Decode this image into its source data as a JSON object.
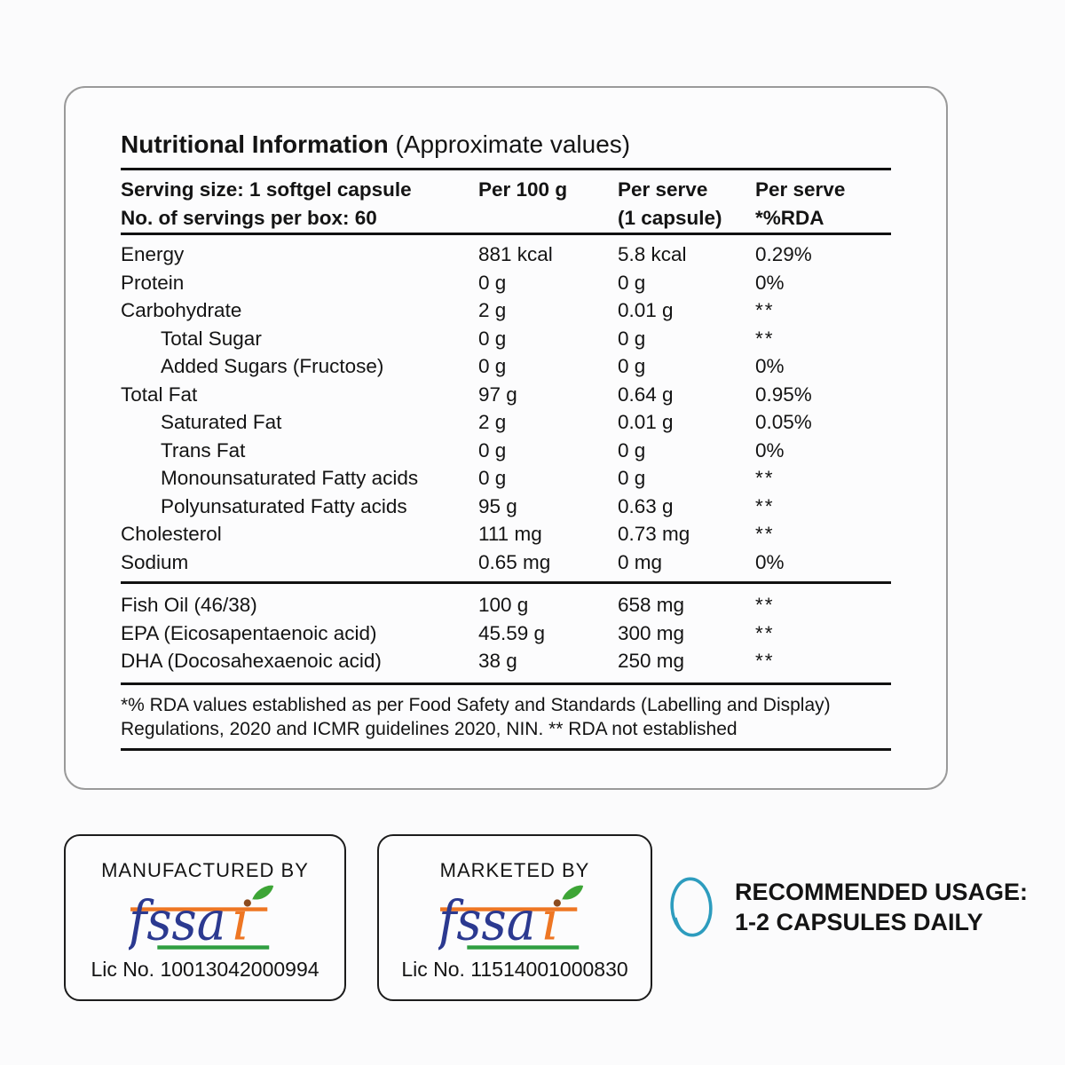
{
  "panel": {
    "title": "Nutritional Information",
    "subtitle": "(Approximate values)",
    "header": {
      "serving_line1": "Serving size: 1 softgel capsule",
      "serving_line2": "No. of servings per box: 60",
      "col_per_100g": "Per 100 g",
      "col_per_serve_line1": "Per serve",
      "col_per_serve_line2": "(1 capsule)",
      "col_rda_line1": "Per serve",
      "col_rda_line2": "*%RDA"
    },
    "rows": [
      {
        "label": "Energy",
        "indent": false,
        "per_100g": "881 kcal",
        "per_serve": "5.8 kcal",
        "rda": "0.29%"
      },
      {
        "label": "Protein",
        "indent": false,
        "per_100g": "0 g",
        "per_serve": "0 g",
        "rda": "0%"
      },
      {
        "label": "Carbohydrate",
        "indent": false,
        "per_100g": "2 g",
        "per_serve": "0.01 g",
        "rda": "**"
      },
      {
        "label": "Total Sugar",
        "indent": true,
        "per_100g": "0 g",
        "per_serve": "0 g",
        "rda": "**"
      },
      {
        "label": "Added Sugars (Fructose)",
        "indent": true,
        "per_100g": "0 g",
        "per_serve": "0 g",
        "rda": "0%"
      },
      {
        "label": "Total Fat",
        "indent": false,
        "per_100g": "97 g",
        "per_serve": "0.64 g",
        "rda": "0.95%"
      },
      {
        "label": "Saturated Fat",
        "indent": true,
        "per_100g": "2 g",
        "per_serve": "0.01 g",
        "rda": "0.05%"
      },
      {
        "label": "Trans Fat",
        "indent": true,
        "per_100g": "0 g",
        "per_serve": "0 g",
        "rda": "0%"
      },
      {
        "label": "Monounsaturated Fatty acids",
        "indent": true,
        "per_100g": "0 g",
        "per_serve": "0 g",
        "rda": "**"
      },
      {
        "label": "Polyunsaturated Fatty acids",
        "indent": true,
        "per_100g": "95 g",
        "per_serve": "0.63 g",
        "rda": "**"
      },
      {
        "label": "Cholesterol",
        "indent": false,
        "per_100g": "111 mg",
        "per_serve": "0.73 mg",
        "rda": "**"
      },
      {
        "label": "Sodium",
        "indent": false,
        "per_100g": "0.65 mg",
        "per_serve": "0 mg",
        "rda": "0%"
      }
    ],
    "composition_rows": [
      {
        "label": "Fish Oil (46/38)",
        "indent": false,
        "per_100g": "100 g",
        "per_serve": "658 mg",
        "rda": "**"
      },
      {
        "label": "EPA (Eicosapentaenoic acid)",
        "indent": false,
        "per_100g": "45.59 g",
        "per_serve": "300 mg",
        "rda": "**"
      },
      {
        "label": "DHA (Docosahexaenoic acid)",
        "indent": false,
        "per_100g": "38 g",
        "per_serve": "250 mg",
        "rda": "**"
      }
    ],
    "footnote_line1": "*% RDA values established as per Food Safety and Standards (Labelling and Display)",
    "footnote_line2": "Regulations, 2020 and ICMR guidelines 2020, NIN. ** RDA not established"
  },
  "manufactured": {
    "heading": "MANUFACTURED BY",
    "license": "Lic No. 10013042000994"
  },
  "marketed": {
    "heading": "MARKETED BY",
    "license": "Lic No. 11514001000830"
  },
  "fssai_logo": {
    "name": "fssai",
    "main_display": "fssa",
    "i_display": "ı"
  },
  "usage": {
    "line1": "RECOMMENDED USAGE:",
    "line2": "1-2 CAPSULES DAILY"
  },
  "colors": {
    "fssai_navy": "#2B3990",
    "fssai_orange": "#EE7623",
    "fssai_underline_green": "#2F9E41",
    "fssai_leaf_green": "#3DA536",
    "fssai_dot_brown": "#8C4A1D",
    "capsule_teal": "#2D9CBE",
    "text": "#141414",
    "rule_black": "#111111",
    "card_border": "#9A9A9A",
    "box_border": "#1C1C1C"
  }
}
